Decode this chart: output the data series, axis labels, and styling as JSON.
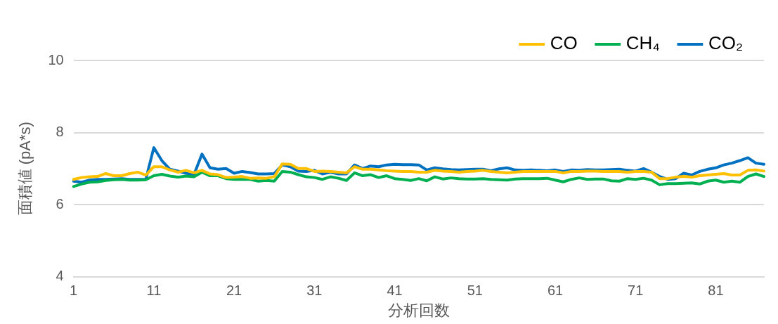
{
  "chart_data": {
    "type": "line",
    "xlabel": "分析回数",
    "ylabel": "面積値 (pA*s)",
    "categories": [
      "1",
      null,
      null,
      null,
      null,
      null,
      null,
      null,
      null,
      null,
      "11",
      null,
      null,
      null,
      null,
      null,
      null,
      null,
      null,
      null,
      "21",
      null,
      null,
      null,
      null,
      null,
      null,
      null,
      null,
      null,
      "31",
      null,
      null,
      null,
      null,
      null,
      null,
      null,
      null,
      null,
      "41",
      null,
      null,
      null,
      null,
      null,
      null,
      null,
      null,
      null,
      "51",
      null,
      null,
      null,
      null,
      null,
      null,
      null,
      null,
      null,
      "61",
      null,
      null,
      null,
      null,
      null,
      null,
      null,
      null,
      null,
      "71",
      null,
      null,
      null,
      null,
      null,
      null,
      null,
      null,
      null,
      "81",
      null,
      null,
      null,
      null,
      null,
      null
    ],
    "ylim": [
      4,
      10
    ],
    "yticks": [
      4,
      6,
      8,
      10
    ],
    "grid": "y",
    "legend": "top right",
    "marker": "none",
    "line_style": "solid",
    "series": [
      {
        "name": "CO",
        "color": "#ffc000",
        "values": [
          6.7,
          6.75,
          6.77,
          6.78,
          6.86,
          6.8,
          6.8,
          6.86,
          6.9,
          6.82,
          7.05,
          7.05,
          6.96,
          6.9,
          6.95,
          6.88,
          6.95,
          6.85,
          6.83,
          6.75,
          6.76,
          6.78,
          6.73,
          6.74,
          6.73,
          6.77,
          7.13,
          7.12,
          7.0,
          7.0,
          6.92,
          6.93,
          6.92,
          6.9,
          6.88,
          7.05,
          6.98,
          6.98,
          6.96,
          6.94,
          6.93,
          6.92,
          6.92,
          6.9,
          6.9,
          6.95,
          6.93,
          6.92,
          6.9,
          6.92,
          6.93,
          6.95,
          6.92,
          6.9,
          6.88,
          6.9,
          6.92,
          6.92,
          6.92,
          6.92,
          6.92,
          6.88,
          6.92,
          6.92,
          6.93,
          6.93,
          6.92,
          6.92,
          6.92,
          6.9,
          6.92,
          6.92,
          6.9,
          6.72,
          6.72,
          6.76,
          6.78,
          6.76,
          6.8,
          6.82,
          6.84,
          6.86,
          6.82,
          6.82,
          6.95,
          6.96,
          6.93
        ]
      },
      {
        "name": "CH₄",
        "color": "#00b050",
        "values": [
          6.5,
          6.57,
          6.62,
          6.63,
          6.67,
          6.69,
          6.7,
          6.68,
          6.68,
          6.69,
          6.8,
          6.84,
          6.79,
          6.76,
          6.79,
          6.77,
          6.9,
          6.8,
          6.8,
          6.72,
          6.7,
          6.7,
          6.7,
          6.65,
          6.67,
          6.65,
          6.92,
          6.9,
          6.83,
          6.77,
          6.75,
          6.7,
          6.77,
          6.73,
          6.67,
          6.88,
          6.8,
          6.83,
          6.75,
          6.8,
          6.72,
          6.7,
          6.67,
          6.72,
          6.66,
          6.77,
          6.71,
          6.74,
          6.72,
          6.71,
          6.71,
          6.72,
          6.7,
          6.69,
          6.68,
          6.71,
          6.72,
          6.72,
          6.72,
          6.73,
          6.68,
          6.63,
          6.7,
          6.74,
          6.7,
          6.71,
          6.71,
          6.66,
          6.65,
          6.72,
          6.7,
          6.73,
          6.68,
          6.55,
          6.58,
          6.58,
          6.59,
          6.6,
          6.57,
          6.65,
          6.68,
          6.62,
          6.65,
          6.62,
          6.78,
          6.85,
          6.78
        ]
      },
      {
        "name": "CO₂",
        "color": "#0070c0",
        "values": [
          6.65,
          6.62,
          6.68,
          6.7,
          6.7,
          6.71,
          6.72,
          6.7,
          6.7,
          6.7,
          7.58,
          7.22,
          6.98,
          6.93,
          6.87,
          6.83,
          7.4,
          7.02,
          6.98,
          7.0,
          6.87,
          6.92,
          6.89,
          6.85,
          6.85,
          6.86,
          7.1,
          7.05,
          6.93,
          6.92,
          6.95,
          6.85,
          6.9,
          6.85,
          6.85,
          7.1,
          7.0,
          7.07,
          7.05,
          7.1,
          7.12,
          7.11,
          7.11,
          7.1,
          6.96,
          7.02,
          6.99,
          6.97,
          6.96,
          6.97,
          6.98,
          6.98,
          6.94,
          6.99,
          7.02,
          6.96,
          6.95,
          6.96,
          6.95,
          6.94,
          6.96,
          6.92,
          6.96,
          6.95,
          6.97,
          6.96,
          6.96,
          6.97,
          6.98,
          6.95,
          6.93,
          7.0,
          6.9,
          6.78,
          6.7,
          6.72,
          6.87,
          6.82,
          6.92,
          6.98,
          7.02,
          7.1,
          7.15,
          7.22,
          7.3,
          7.15,
          7.12
        ]
      }
    ]
  }
}
